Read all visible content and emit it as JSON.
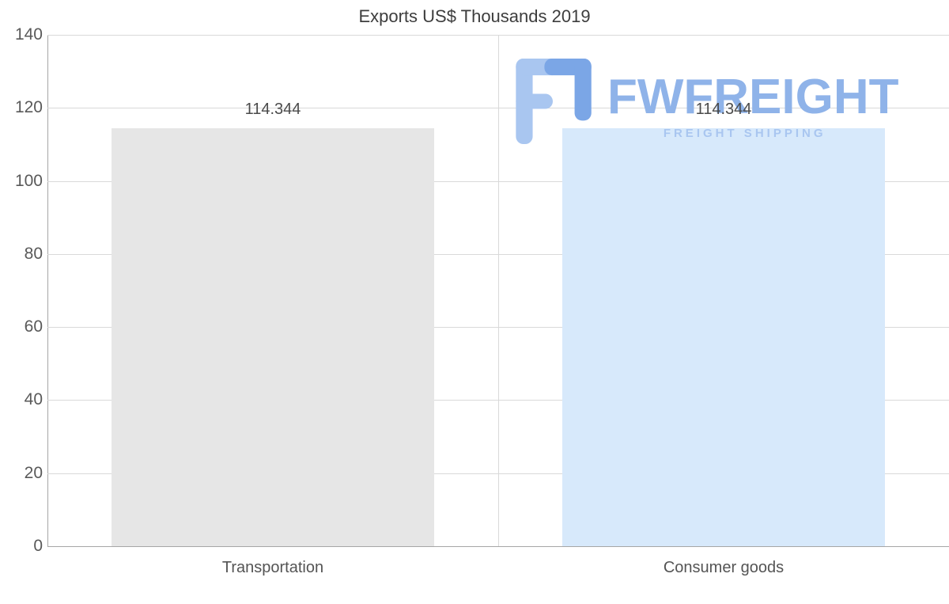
{
  "chart_data": {
    "type": "bar",
    "title": "Exports US$ Thousands 2019",
    "categories": [
      "Transportation",
      "Consumer goods"
    ],
    "values": [
      114.344,
      114.344
    ],
    "value_labels": [
      "114.344",
      "114.344"
    ],
    "bar_colors": [
      "#e6e6e6",
      "#d7e9fb"
    ],
    "xlabel": "",
    "ylabel": "",
    "ylim": [
      0,
      140
    ],
    "yticks": [
      0,
      20,
      40,
      60,
      80,
      100,
      120,
      140
    ],
    "grid": true,
    "legend": "none",
    "text_color": "#595959",
    "gridline_color": "#d9d9d9",
    "axis_color": "#a6a6a6"
  },
  "watermark": {
    "brand": "FWFREIGHT",
    "tagline": "FREIGHT SHIPPING",
    "brand_color": "#8fb3e9",
    "icon_color_light": "#a9c6f0",
    "icon_color_medium": "#7ba6e6"
  }
}
